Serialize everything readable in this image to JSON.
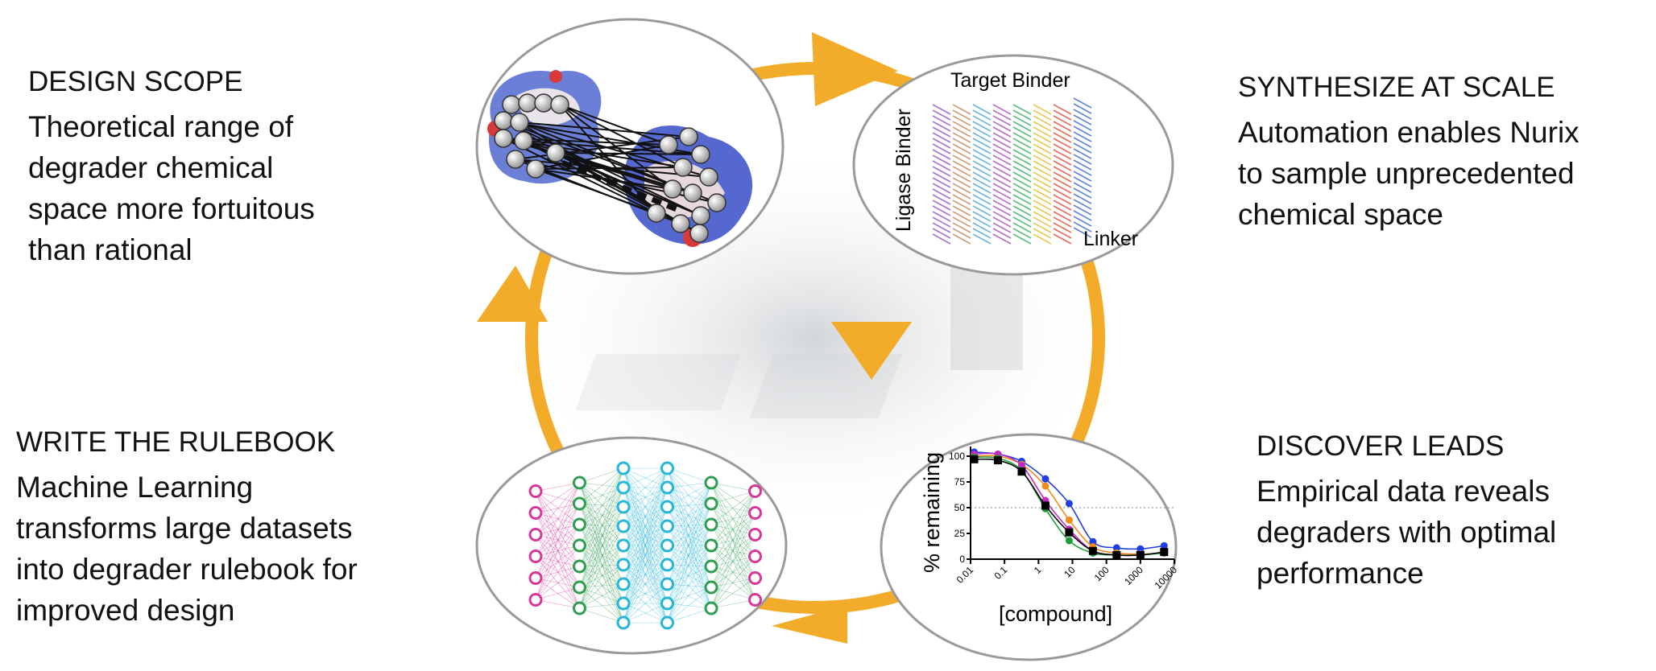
{
  "colors": {
    "arrow": "#f2ac2a",
    "ellipse_border": "#9a9a9a",
    "text": "#111111"
  },
  "stages": [
    {
      "title": "DESIGN SCOPE",
      "lines": [
        "Theoretical range of",
        "degrader chemical",
        "space more fortuitous",
        "than rational"
      ]
    },
    {
      "title": "SYNTHESIZE AT SCALE",
      "lines": [
        "Automation enables Nurix",
        "to sample unprecedented",
        "chemical space"
      ]
    },
    {
      "title": "DISCOVER LEADS",
      "lines": [
        "Empirical data reveals",
        "degraders with optimal",
        "performance"
      ]
    },
    {
      "title": "WRITE THE RULEBOOK",
      "lines": [
        "Machine Learning",
        "transforms large datasets",
        "into degrader rulebook for",
        "improved design"
      ]
    }
  ],
  "library": {
    "target_label": "Target Binder",
    "ligase_label": "Ligase Binder",
    "linker_label": "Linker",
    "plane_colors": [
      "#9b59c8",
      "#c98a5a",
      "#4fa9d6",
      "#b055b8",
      "#3db36a",
      "#e2c03a",
      "#e0553a",
      "#3f6fd6"
    ]
  },
  "network": {
    "layer_sizes": [
      6,
      7,
      9,
      9,
      7,
      6
    ],
    "layer_colors": [
      "#d6379a",
      "#2f9e52",
      "#28b6d8",
      "#28b6d8",
      "#2f9e52",
      "#d6379a"
    ]
  },
  "chart_data": {
    "type": "scatter",
    "xlabel": "[compound]",
    "ylabel": "% remaining",
    "x_scale": "log",
    "xlim": [
      0.01,
      10000
    ],
    "ylim": [
      0,
      110
    ],
    "x_ticks": [
      "0.01",
      "0.1",
      "1",
      "10",
      "100",
      "1000",
      "10000"
    ],
    "y_ticks": [
      "0",
      "25",
      "50",
      "75",
      "100"
    ],
    "reference_line": 50,
    "x": [
      0.0128,
      0.064,
      0.32,
      1.6,
      8,
      40,
      200,
      1000,
      5000
    ],
    "series": [
      {
        "color": "#1f3fe0",
        "values": [
          104,
          102,
          95,
          78,
          54,
          17,
          11,
          10,
          13
        ]
      },
      {
        "color": "#f08a1c",
        "values": [
          100,
          100,
          92,
          71,
          38,
          12,
          6,
          5,
          6
        ]
      },
      {
        "color": "#c02cc0",
        "values": [
          102,
          102,
          91,
          57,
          29,
          8,
          4,
          4,
          7
        ]
      },
      {
        "color": "#1e9c3a",
        "values": [
          99,
          98,
          86,
          49,
          18,
          6,
          4,
          4,
          6
        ]
      },
      {
        "color": "#000000",
        "values": [
          97,
          96,
          85,
          52,
          26,
          8,
          4,
          4,
          7
        ]
      }
    ]
  }
}
